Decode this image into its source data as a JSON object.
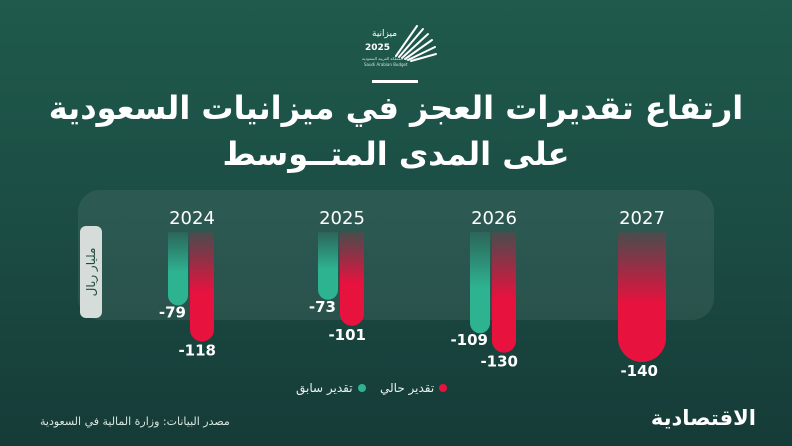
{
  "logo": {
    "word": "ميزانية",
    "year": "2025",
    "subtitle": "ميزانية المملكة العربية السعودية",
    "subtitle_en": "Saudi Arabian Budget"
  },
  "title": {
    "line1": "ارتفاع تقديرات العجز في ميزانيات السعودية",
    "line2": "على المدى المتــوسط"
  },
  "unit_label": "مليار ريال",
  "legend": {
    "current": "تقدير حالي",
    "previous": "تقدير سابق"
  },
  "source": "مصدر البيانات: وزارة المالية في السعودية",
  "brand": "الاقتصادية",
  "colors": {
    "current": "#e8123f",
    "previous": "#2eb390"
  },
  "chart_data": {
    "type": "bar",
    "categories": [
      "2024",
      "2025",
      "2026",
      "2027"
    ],
    "series": [
      {
        "name": "تقدير سابق",
        "values": [
          -79,
          -73,
          -109,
          null
        ],
        "labels": [
          "-79",
          "-73",
          "-109",
          ""
        ]
      },
      {
        "name": "تقدير حالي",
        "values": [
          -118,
          -101,
          -130,
          -140
        ],
        "labels": [
          "-118",
          "-101",
          "-130",
          "-140"
        ]
      }
    ],
    "ylabel": "مليار ريال",
    "ylim": [
      -140,
      0
    ],
    "grid": false,
    "legend_position": "bottom-center"
  }
}
